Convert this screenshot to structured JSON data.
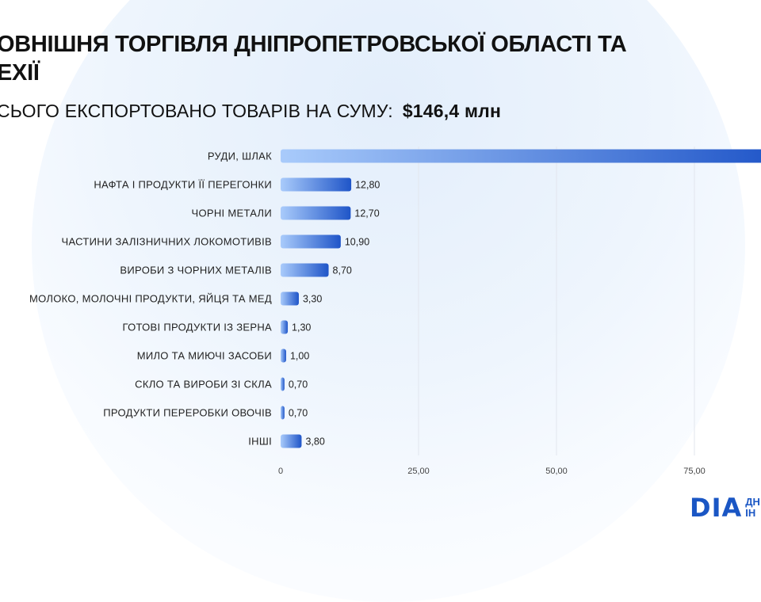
{
  "header": {
    "title_line1": "ОВНІШНЯ ТОРГІВЛЯ ДНІПРОПЕТРОВСЬКОЇ ОБЛАСТІ ТА",
    "title_line2": "ЕХІЇ",
    "subtitle_label": "СЬОГО ЕКСПОРТОВАНО ТОВАРІВ НА СУМУ:",
    "subtitle_value": "$146,4 млн"
  },
  "logo": {
    "text": "DIA",
    "side_line1": "ДН",
    "side_line2": "ІН"
  },
  "chart_data": {
    "type": "bar",
    "orientation": "horizontal",
    "categories": [
      "РУДИ, ШЛАК",
      "НАФТА І ПРОДУКТИ ЇЇ ПЕРЕГОНКИ",
      "ЧОРНІ МЕТАЛИ",
      "ЧАСТИНИ ЗАЛІЗНИЧНИХ ЛОКОМОТИВІВ",
      "ВИРОБИ З ЧОРНИХ МЕТАЛІВ",
      "МОЛОКО, МОЛОЧНІ ПРОДУКТИ, ЯЙЦЯ ТА МЕД",
      "ГОТОВІ ПРОДУКТИ ІЗ ЗЕРНА",
      "МИЛО ТА МИЮЧІ ЗАСОБИ",
      "СКЛО ТА ВИРОБИ ЗІ СКЛА",
      "ПРОДУКТИ ПЕРЕРОБКИ ОВОЧІВ",
      "ІНШІ"
    ],
    "values": [
      90.5,
      12.8,
      12.7,
      10.9,
      8.7,
      3.3,
      1.3,
      1.0,
      0.7,
      0.7,
      3.8
    ],
    "value_labels": [
      "",
      "12,80",
      "12,70",
      "10,90",
      "8,70",
      "3,30",
      "1,30",
      "1,00",
      "0,70",
      "0,70",
      "3,80"
    ],
    "x_ticks": [
      0,
      25,
      50,
      75
    ],
    "x_tick_labels": [
      "0",
      "25,00",
      "50,00",
      "75,00"
    ],
    "xlim": [
      0,
      100
    ],
    "grid": true,
    "colors": {
      "bar_start": "#a9cbfb",
      "bar_end": "#1f55c8"
    }
  }
}
